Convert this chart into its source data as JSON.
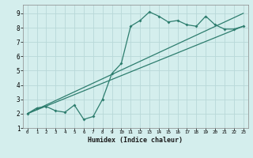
{
  "xlabel": "Humidex (Indice chaleur)",
  "bg_color": "#d4eeed",
  "grid_color": "#b8d8d8",
  "line_color": "#2d7d6e",
  "xlim": [
    -0.5,
    23.5
  ],
  "ylim": [
    1,
    9.6
  ],
  "xticks": [
    0,
    1,
    2,
    3,
    4,
    5,
    6,
    7,
    8,
    9,
    10,
    11,
    12,
    13,
    14,
    15,
    16,
    17,
    18,
    19,
    20,
    21,
    22,
    23
  ],
  "yticks": [
    1,
    2,
    3,
    4,
    5,
    6,
    7,
    8,
    9
  ],
  "line1_x": [
    0,
    1,
    2,
    3,
    4,
    5,
    6,
    7,
    8,
    9,
    10,
    11,
    12,
    13,
    14,
    15,
    16,
    17,
    18,
    19,
    20,
    21,
    22,
    23
  ],
  "line1_y": [
    2.0,
    2.4,
    2.5,
    2.2,
    2.1,
    2.6,
    1.6,
    1.8,
    3.0,
    4.8,
    5.5,
    8.1,
    8.5,
    9.1,
    8.8,
    8.4,
    8.5,
    8.2,
    8.1,
    8.8,
    8.2,
    7.9,
    7.9,
    8.1
  ],
  "line2_x": [
    0,
    23
  ],
  "line2_y": [
    2.0,
    8.1
  ],
  "line3_x": [
    0,
    23
  ],
  "line3_y": [
    2.0,
    9.0
  ]
}
